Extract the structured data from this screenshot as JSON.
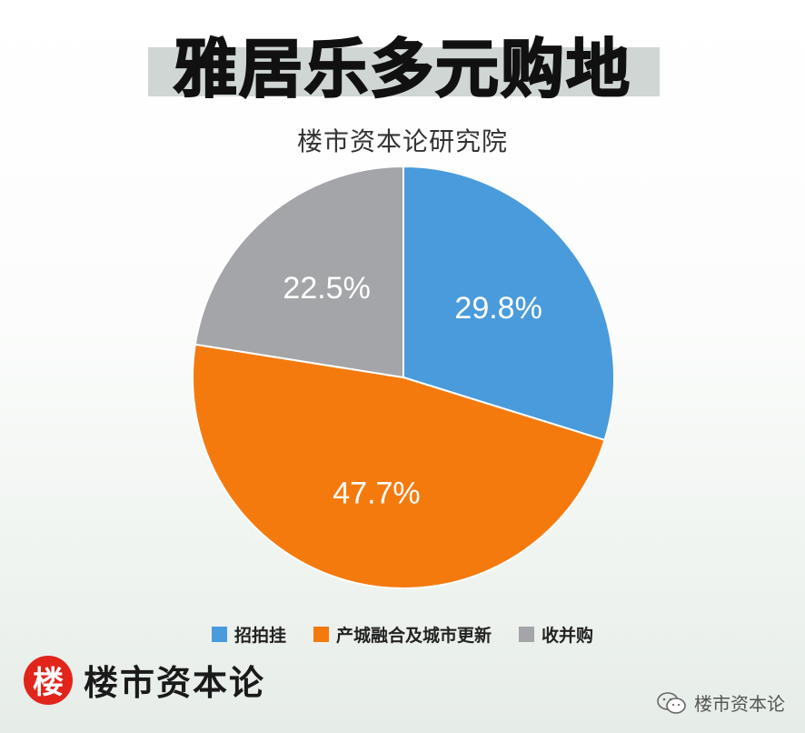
{
  "title": "雅居乐多元购地",
  "subtitle": "楼市资本论研究院",
  "chart_data": {
    "type": "pie",
    "slices": [
      {
        "label": "招拍挂",
        "value": 29.8,
        "display": "29.8%",
        "color": "#4a9bdc"
      },
      {
        "label": "产城融合及城市更新",
        "value": 47.7,
        "display": "47.7%",
        "color": "#f57a0e"
      },
      {
        "label": "收并购",
        "value": 22.5,
        "display": "22.5%",
        "color": "#a4a5a8"
      }
    ],
    "legend_position": "bottom"
  },
  "brand": {
    "badge": "楼",
    "name": "楼市资本论"
  },
  "watermark": {
    "text": "楼市资本论",
    "icon": "wechat-icon"
  }
}
